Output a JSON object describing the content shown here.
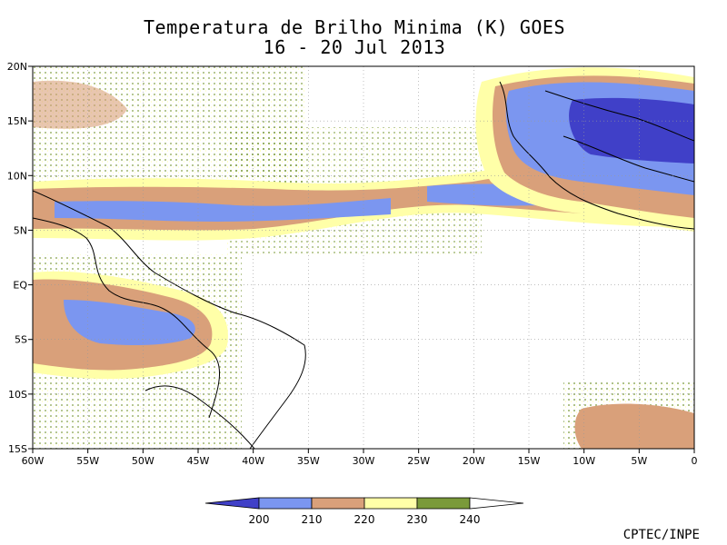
{
  "title": "Temperatura de Brilho Minima (K) GOES",
  "subtitle": "16 - 20 Jul 2013",
  "credit": "CPTEC/INPE",
  "axes": {
    "x_ticks": [
      "60W",
      "55W",
      "50W",
      "45W",
      "40W",
      "35W",
      "30W",
      "25W",
      "20W",
      "15W",
      "10W",
      "5W",
      "0"
    ],
    "y_ticks": [
      "20N",
      "15N",
      "10N",
      "5N",
      "EQ",
      "5S",
      "10S",
      "15S"
    ],
    "lon_range": [
      -60,
      0
    ],
    "lat_range": [
      -15,
      20
    ],
    "grid": "dotted"
  },
  "colorbar": {
    "labels": [
      "200",
      "210",
      "220",
      "230",
      "240"
    ],
    "colors": [
      "#4040c8",
      "#7b96f0",
      "#d9a07a",
      "#ffffa8",
      "#7a9a3a",
      "#ffffff"
    ]
  },
  "map_layers": [
    "Brazil coastline and states",
    "West Africa coastline and borders"
  ]
}
